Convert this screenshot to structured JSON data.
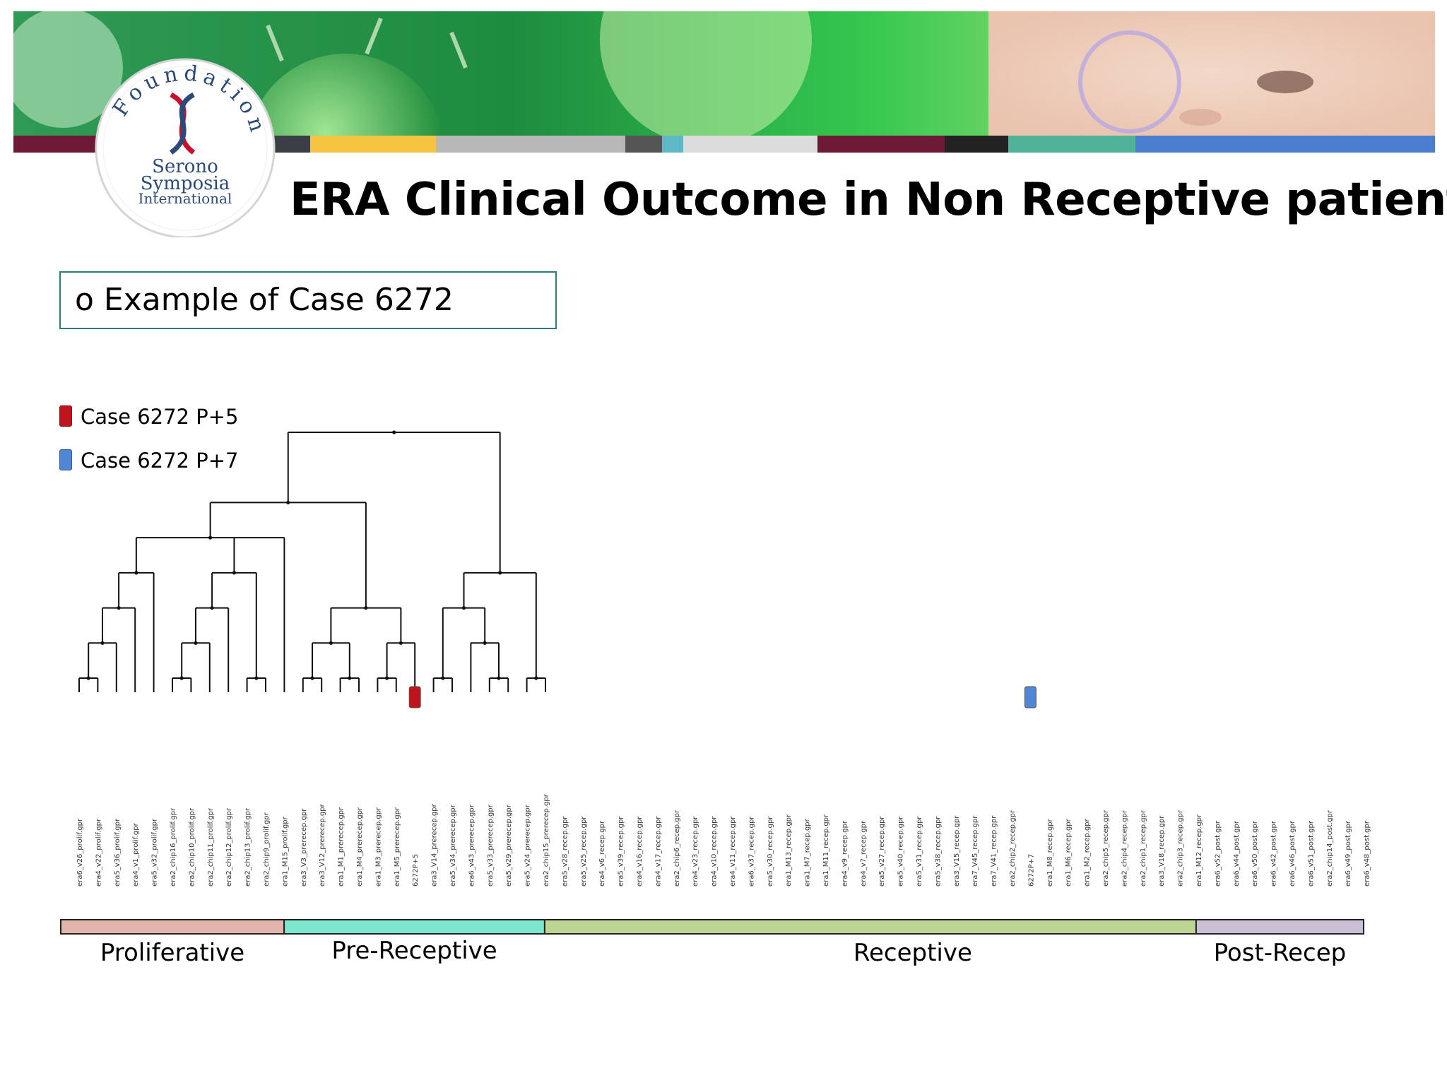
{
  "title": "ERA Clinical Outcome in Non Receptive patients",
  "example_label": "Example of Case 6272",
  "example_bullet": "o",
  "logo": {
    "text_arc": "Foundation",
    "line1": "Serono",
    "line2": "Symposia",
    "line3": "International"
  },
  "legend": [
    {
      "label": "Case 6272 P+5",
      "color": "#c0141c"
    },
    {
      "label": "Case 6272 P+7",
      "color": "#4f86d6"
    }
  ],
  "banner_stripe_colors": [
    "#6e1a37",
    "#3a3f46",
    "#f5c542",
    "#b8b8b8",
    "#555555",
    "#5fb8c8",
    "#dcdcdc",
    "#6e1a37",
    "#222222",
    "#4fb39a",
    "#4a7fcf"
  ],
  "samples": [
    "era6_v26_prolif.gpr",
    "era4_v22_prolif.gpr",
    "era5_v36_prolif.gpr",
    "era4_v1_prolif.gpr",
    "era5_v32_prolif.gpr",
    "era2_chip16_prolif.gpr",
    "era2_chip10_prolif.gpr",
    "era2_chip11_prolif.gpr",
    "era2_chip12_prolif.gpr",
    "era2_chip13_prolif.gpr",
    "era2_chip9_prolif.gpr",
    "era1_M15_prolif.gpr",
    "era3_V3_prerecep.gpr",
    "era3_V12_prerecep.gpr",
    "era1_M1_prerecep.gpr",
    "era1_M4_prerecep.gpr",
    "era1_M3_prerecep.gpr",
    "era1_M5_prerecep.gpr",
    "6272P+5",
    "era3_V14_prerecep.gpr",
    "era5_v34_prerecep.gpr",
    "era6_v43_prerecep.gpr",
    "era5_v33_prerecep.gpr",
    "era5_v29_prerecep.gpr",
    "era5_v24_prerecep.gpr",
    "era2_chip15_prerecep.gpr",
    "era5_v28_recep.gpr",
    "era5_v25_recep.gpr",
    "era4_v6_recep.gpr",
    "era5_v39_recep.gpr",
    "era4_v16_recep.gpr",
    "era4_v17_recep.gpr",
    "era2_chip6_recep.gpr",
    "era4_v23_recep.gpr",
    "era4_v10_recep.gpr",
    "era4_v11_recep.gpr",
    "era6_v37_recep.gpr",
    "era5_v30_recep.gpr",
    "era1_M13_recep.gpr",
    "era1_M7_recep.gpr",
    "era1_M11_recep.gpr",
    "era4_v9_recep.gpr",
    "era4_v7_recep.gpr",
    "era5_v27_recep.gpr",
    "era5_v40_recep.gpr",
    "era5_v31_recep.gpr",
    "era5_v38_recep.gpr",
    "era3_V15_recep.gpr",
    "era7_V45_recep.gpr",
    "era7_V41_recep.gpr",
    "era2_chip2_recep.gpr",
    "6272P+7",
    "era1_M8_recep.gpr",
    "era1_M6_recep.gpr",
    "era1_M2_recep.gpr",
    "era2_chip5_recep.gpr",
    "era2_chip4_recep.gpr",
    "era2_chip1_recep.gpr",
    "era3_V18_recep.gpr",
    "era2_chip3_recep.gpr",
    "era1_M12_recep.gpr",
    "era6_v52_post.gpr",
    "era6_v44_post.gpr",
    "era6_v50_post.gpr",
    "era6_v42_post.gpr",
    "era6_v46_post.gpr",
    "era6_v51_post.gpr",
    "era2_chip14_post.gpr",
    "era6_v49_post.gpr",
    "era6_v48_post.gpr"
  ],
  "highlighted_samples": [
    {
      "sample": "6272P+5",
      "color": "#c0141c"
    },
    {
      "sample": "6272P+7",
      "color": "#4f86d6"
    }
  ],
  "phases": [
    {
      "label": "Proliferative",
      "color": "#e2b4ac",
      "start": 0,
      "end": 12
    },
    {
      "label": "Pre-Receptive",
      "color": "#7de6cf",
      "start": 12,
      "end": 26
    },
    {
      "label": "Receptive",
      "color": "#bcd592",
      "start": 26,
      "end": 61
    },
    {
      "label": "Post-Recep",
      "color": "#cbbfd6",
      "start": 61,
      "end": 70
    }
  ]
}
